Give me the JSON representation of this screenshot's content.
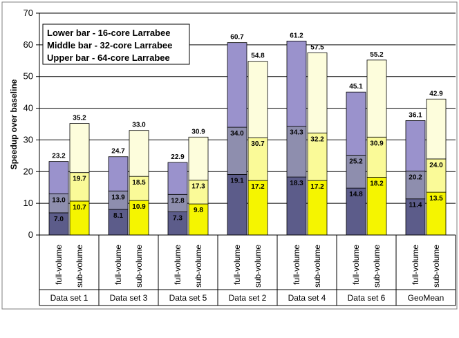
{
  "chart_data": {
    "type": "bar",
    "stacked": true,
    "ylabel": "Speedup over baseline",
    "ylim": [
      0,
      70
    ],
    "yticks": [
      "0",
      "10",
      "20",
      "30",
      "40",
      "50",
      "60",
      "70"
    ],
    "grid": true,
    "legend": {
      "placement": "top-left",
      "lines": [
        "Lower bar - 16-core Larrabee",
        "Middle bar - 32-core Larrabee",
        "Upper bar - 64-core Larrabee"
      ]
    },
    "groups": [
      {
        "name": "Data set 1",
        "bars": [
          {
            "label": "full-volume",
            "values": [
              7.0,
              13.0,
              23.2
            ],
            "labels": [
              "7.0",
              "13.0",
              "23.2"
            ]
          },
          {
            "label": "sub-volume",
            "values": [
              10.7,
              19.7,
              35.2
            ],
            "labels": [
              "10.7",
              "19.7",
              "35.2"
            ]
          }
        ]
      },
      {
        "name": "Data set 3",
        "bars": [
          {
            "label": "full-volume",
            "values": [
              8.1,
              13.9,
              24.7
            ],
            "labels": [
              "8.1",
              "13.9",
              "24.7"
            ]
          },
          {
            "label": "sub-volume",
            "values": [
              10.9,
              18.5,
              33.0
            ],
            "labels": [
              "10.9",
              "18.5",
              "33.0"
            ]
          }
        ]
      },
      {
        "name": "Data set 5",
        "bars": [
          {
            "label": "full-volume",
            "values": [
              7.3,
              12.8,
              22.9
            ],
            "labels": [
              "7.3",
              "12.8",
              "22.9"
            ]
          },
          {
            "label": "sub-volume",
            "values": [
              9.8,
              17.3,
              30.9
            ],
            "labels": [
              "9.8",
              "17.3",
              "30.9"
            ]
          }
        ]
      },
      {
        "name": "Data set 2",
        "bars": [
          {
            "label": "full-volume",
            "values": [
              19.1,
              34.0,
              60.7
            ],
            "labels": [
              "19.1",
              "34.0",
              "60.7"
            ]
          },
          {
            "label": "sub-volume",
            "values": [
              17.2,
              30.7,
              54.8
            ],
            "labels": [
              "17.2",
              "30.7",
              "54.8"
            ]
          }
        ]
      },
      {
        "name": "Data set 4",
        "bars": [
          {
            "label": "full-volume",
            "values": [
              18.3,
              34.3,
              61.2
            ],
            "labels": [
              "18.3",
              "34.3",
              "61.2"
            ]
          },
          {
            "label": "sub-volume",
            "values": [
              17.2,
              32.2,
              57.5
            ],
            "labels": [
              "17.2",
              "32.2",
              "57.5"
            ]
          }
        ]
      },
      {
        "name": "Data set 6",
        "bars": [
          {
            "label": "full-volume",
            "values": [
              14.8,
              25.2,
              45.1
            ],
            "labels": [
              "14.8",
              "25.2",
              "45.1"
            ]
          },
          {
            "label": "sub-volume",
            "values": [
              18.2,
              30.9,
              55.2
            ],
            "labels": [
              "18.2",
              "30.9",
              "55.2"
            ]
          }
        ]
      },
      {
        "name": "GeoMean",
        "bars": [
          {
            "label": "full-volume",
            "values": [
              11.4,
              20.2,
              36.1
            ],
            "labels": [
              "11.4",
              "20.2",
              "36.1"
            ]
          },
          {
            "label": "sub-volume",
            "values": [
              13.5,
              24.0,
              42.9
            ],
            "labels": [
              "13.5",
              "24.0",
              "42.9"
            ]
          }
        ]
      }
    ],
    "colors": {
      "full-volume": [
        "#5c5c8a",
        "#8e8eae",
        "#9a92cc"
      ],
      "sub-volume": [
        "#f5f500",
        "#fafa98",
        "#fdfddc"
      ]
    }
  }
}
